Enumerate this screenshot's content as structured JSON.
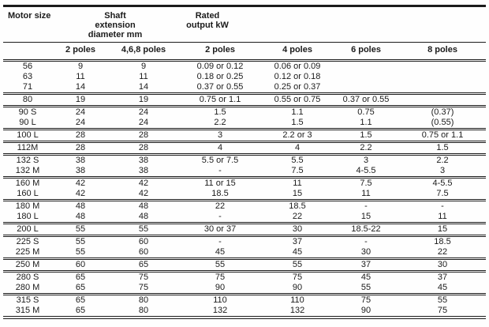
{
  "page": {
    "background": "#fefefe",
    "text_color": "#1b1b1b",
    "rule_color": "#1b1b1b"
  },
  "table": {
    "header": {
      "motor_size": "Motor size",
      "shaft_lines": [
        "Shaft",
        "extension",
        "diameter mm"
      ],
      "rated_lines": [
        "Rated",
        "output kW"
      ],
      "sub_headers": [
        "2 poles",
        "4,6,8 poles",
        "2 poles",
        "4 poles",
        "6 poles",
        "8 poles"
      ]
    },
    "column_semantics": [
      "Motor size",
      "Shaft extension diameter mm - 2 poles",
      "Shaft extension diameter mm - 4,6,8 poles",
      "Rated output kW - 2 poles",
      "Rated output kW - 4 poles",
      "Rated output kW - 6 poles",
      "Rated output kW - 8 poles"
    ],
    "groups": [
      {
        "rows": [
          [
            "56",
            "9",
            "9",
            "0.09 or 0.12",
            "0.06 or 0.09",
            "",
            ""
          ],
          [
            "63",
            "11",
            "11",
            "0.18 or 0.25",
            "0.12 or 0.18",
            "",
            ""
          ],
          [
            "71",
            "14",
            "14",
            "0.37 or 0.55",
            "0.25 or 0.37",
            "",
            ""
          ]
        ]
      },
      {
        "rows": [
          [
            "80",
            "19",
            "19",
            "0.75 or 1.1",
            "0.55 or 0.75",
            "0.37 or 0.55",
            ""
          ]
        ]
      },
      {
        "rows": [
          [
            "90 S",
            "24",
            "24",
            "1.5",
            "1.1",
            "0.75",
            "(0.37)"
          ],
          [
            "90 L",
            "24",
            "24",
            "2.2",
            "1.5",
            "1.1",
            "(0.55)"
          ]
        ]
      },
      {
        "rows": [
          [
            "100 L",
            "28",
            "28",
            "3",
            "2.2 or 3",
            "1.5",
            "0.75 or 1.1"
          ]
        ]
      },
      {
        "rows": [
          [
            "112M",
            "28",
            "28",
            "4",
            "4",
            "2.2",
            "1.5"
          ]
        ]
      },
      {
        "rows": [
          [
            "132 S",
            "38",
            "38",
            "5.5 or 7.5",
            "5.5",
            "3",
            "2.2"
          ],
          [
            "132 M",
            "38",
            "38",
            "-",
            "7.5",
            "4-5.5",
            "3"
          ]
        ]
      },
      {
        "rows": [
          [
            "160 M",
            "42",
            "42",
            "11 or 15",
            "11",
            "7.5",
            "4-5.5"
          ],
          [
            "160 L",
            "42",
            "42",
            "18.5",
            "15",
            "11",
            "7.5"
          ]
        ]
      },
      {
        "rows": [
          [
            "180 M",
            "48",
            "48",
            "22",
            "18.5",
            "-",
            "-"
          ],
          [
            "180 L",
            "48",
            "48",
            "-",
            "22",
            "15",
            "11"
          ]
        ]
      },
      {
        "rows": [
          [
            "200 L",
            "55",
            "55",
            "30 or 37",
            "30",
            "18.5-22",
            "15"
          ]
        ]
      },
      {
        "rows": [
          [
            "225 S",
            "55",
            "60",
            "-",
            "37",
            "-",
            "18.5"
          ],
          [
            "225 M",
            "55",
            "60",
            "45",
            "45",
            "30",
            "22"
          ]
        ]
      },
      {
        "rows": [
          [
            "250 M",
            "60",
            "65",
            "55",
            "55",
            "37",
            "30"
          ]
        ]
      },
      {
        "rows": [
          [
            "280 S",
            "65",
            "75",
            "75",
            "75",
            "45",
            "37"
          ],
          [
            "280 M",
            "65",
            "75",
            "90",
            "90",
            "55",
            "45"
          ]
        ]
      },
      {
        "rows": [
          [
            "315 S",
            "65",
            "80",
            "110",
            "110",
            "75",
            "55"
          ],
          [
            "315 M",
            "65",
            "80",
            "132",
            "132",
            "90",
            "75"
          ]
        ]
      }
    ]
  }
}
